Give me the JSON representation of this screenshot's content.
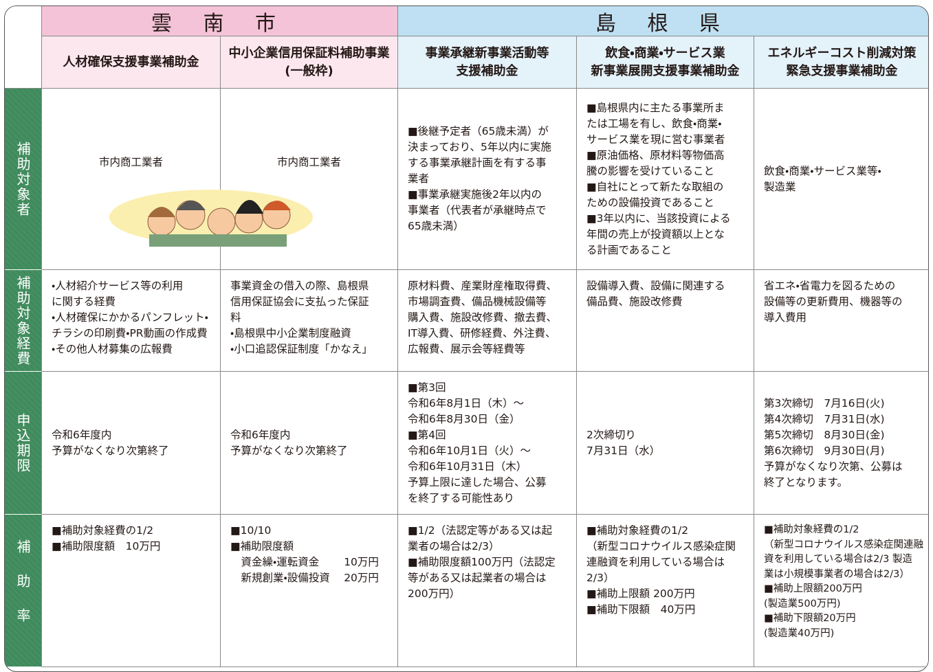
{
  "header": {
    "groups": [
      {
        "label": "雲 南 市"
      },
      {
        "label": "島 根 県"
      }
    ],
    "columns": [
      [
        "人材確保支援事業補助金"
      ],
      [
        "中小企業信用保証料補助事業",
        "(一般枠)"
      ],
      [
        "事業承継新事業活動等",
        "支援補助金"
      ],
      [
        "飲食・商業・サービス業",
        "新事業展開支援事業補助金"
      ],
      [
        "エネルギーコスト削減対策",
        "緊急支援事業補助金"
      ]
    ]
  },
  "rows": [
    {
      "label": "補助対象者",
      "cells": [
        [
          "市内商工業者"
        ],
        [
          "市内商工業者"
        ],
        [
          "■後継予定者（65歳未満）が",
          "決まっており、5年以内に実施",
          "する事業承継計画を有する事",
          "業者",
          "■事業承継実施後2年以内の",
          "事業者（代表者が承継時点で",
          "65歳未満）"
        ],
        [
          "■島根県内に主たる事業所ま",
          "たは工場を有し、飲食・商業・",
          "サービス業を現に営む事業者",
          "■原油価格、原材料等物価高",
          "騰の影響を受けていること",
          "■自社にとって新たな取組の",
          "ための設備投資であること",
          "■3年以内に、当該投資による",
          "年間の売上が投資額以上とな",
          "る計画であること"
        ],
        [
          "飲食・商業・サービス業等・",
          "製造業"
        ]
      ]
    },
    {
      "label": "補助対象経費",
      "cells": [
        [
          "・人材紹介サービス等の利用",
          "に関する経費",
          "・人材確保にかかるパンフレット・",
          "チラシの印刷費・PR動画の作成費",
          "・その他人材募集の広報費"
        ],
        [
          "事業資金の借入の際、島根県",
          "信用保証協会に支払った保証",
          "料",
          "・島根県中小企業制度融資",
          "・小口追認保証制度「かなえ」"
        ],
        [
          "原材料費、産業財産権取得費、",
          "市場調査費、備品機械設備等",
          "購入費、施設改修費、撤去費、",
          "IT導入費、研修経費、外注費、",
          "広報費、展示会等経費等"
        ],
        [
          "設備導入費、設備に関連する",
          "備品費、施設改修費"
        ],
        [
          "省エネ・省電力を図るための",
          "設備等の更新費用、機器等の",
          "導入費用"
        ]
      ]
    },
    {
      "label": "申込期限",
      "cells": [
        [
          "令和6年度内",
          "予算がなくなり次第終了"
        ],
        [
          "令和6年度内",
          "予算がなくなり次第終了"
        ],
        [
          "■第3回",
          "令和6年8月1日（木）～",
          "令和6年8月30日（金）",
          "■第4回",
          "令和6年10月1日（火）～",
          "令和6年10月31日（木）",
          "予算上限に達した場合、公募",
          "を終了する可能性あり"
        ],
        [
          "2次締切り",
          "7月31日（水）"
        ],
        [
          "第3次締切　7月16日(火)",
          "第4次締切　7月31日(水)",
          "第5次締切　8月30日(金)",
          "第6次締切　9月30日(月)",
          "予算がなくなり次第、公募は",
          "終了となります。"
        ]
      ]
    },
    {
      "label": "補助率",
      "cells": [
        [
          "■補助対象経費の1/2",
          "■補助限度額　10万円"
        ],
        [
          "■10/10",
          "■補助限度額",
          "　資金繰・運転資金　　 10万円",
          "　新規創業・設備投資　 20万円"
        ],
        [
          "■1/2（法認定等がある又は起",
          "業者の場合は2/3）",
          "■補助限度額100万円（法認定",
          "等がある又は起業者の場合は",
          "200万円）"
        ],
        [
          "■補助対象経費の1/2",
          "（新型コロナウイルス感染症関",
          "連融資を利用している場合は",
          "2/3）",
          "■補助上限額 200万円",
          "■補助下限額　40万円"
        ],
        [
          "■補助対象経費の1/2",
          "（新型コロナウイルス感染症関連融",
          "資を利用している場合は2/3 製造",
          "業は小規模事業者の場合は2/3）",
          "■補助上限額200万円",
          "(製造業500万円)",
          "■補助下限額20万円",
          "(製造業40万円)"
        ]
      ]
    }
  ]
}
